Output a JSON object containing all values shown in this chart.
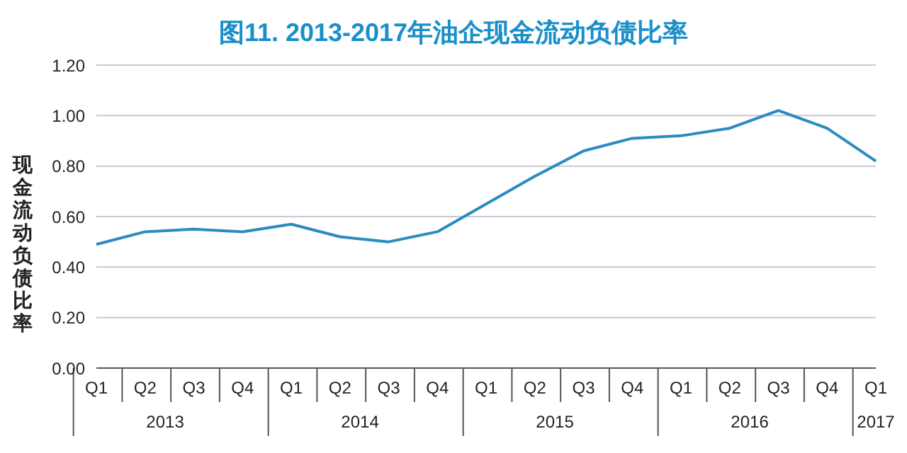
{
  "chart_data": {
    "type": "line",
    "title": "图11. 2013-2017年油企现金流动负债比率",
    "ylabel": "现金流动负债比率",
    "categories": [
      "Q1",
      "Q2",
      "Q3",
      "Q4",
      "Q1",
      "Q2",
      "Q3",
      "Q4",
      "Q1",
      "Q2",
      "Q3",
      "Q4",
      "Q1",
      "Q2",
      "Q3",
      "Q4",
      "Q1"
    ],
    "annotations": [
      "2013",
      "2014",
      "2015",
      "2016",
      "2017"
    ],
    "series": [
      {
        "color": "#2a8cc0",
        "values": [
          0.49,
          0.54,
          0.55,
          0.54,
          0.57,
          0.52,
          0.5,
          0.54,
          0.65,
          0.76,
          0.86,
          0.91,
          0.92,
          0.95,
          1.02,
          0.95,
          0.82
        ]
      }
    ],
    "ylim": [
      0,
      1.2
    ],
    "yticks": [
      {
        "value": 0,
        "label": "0.00"
      },
      {
        "value": 0.2,
        "label": "0.20"
      },
      {
        "value": 0.4,
        "label": "0.40"
      },
      {
        "value": 0.6,
        "label": "0.60"
      },
      {
        "value": 0.8,
        "label": "0.80"
      },
      {
        "value": 1.0,
        "label": "1.00"
      },
      {
        "value": 1.2,
        "label": "1.20"
      }
    ],
    "grid": "y",
    "legend": false,
    "marker": "none",
    "line_style": "solid"
  }
}
